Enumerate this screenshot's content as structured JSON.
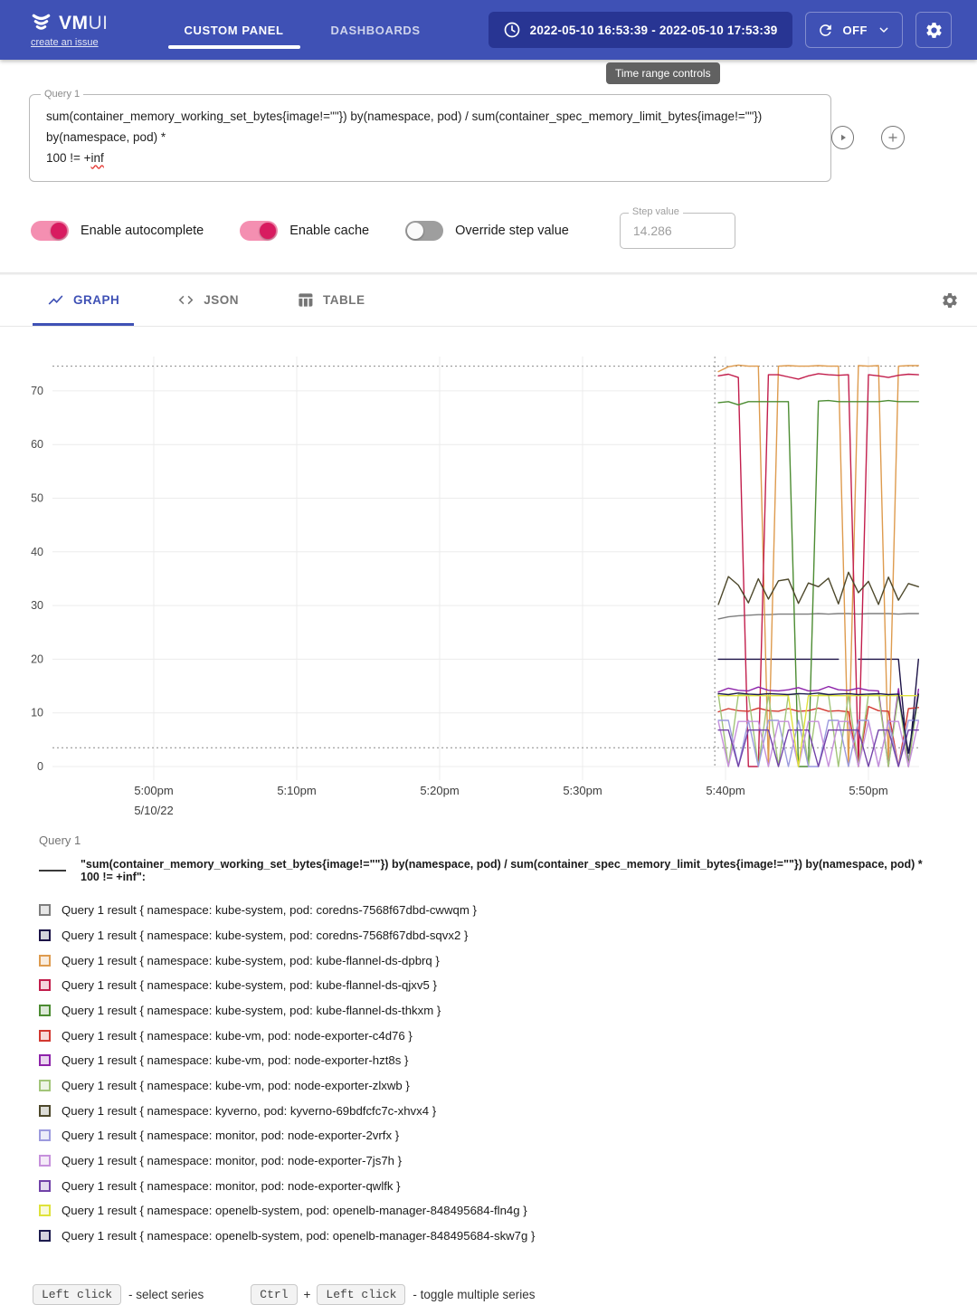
{
  "colors": {
    "header_bg": "#3F51B5",
    "header_btn_bg": "#283593",
    "accent": "#3F51B5",
    "toggle_on_track": "#F48FB1",
    "toggle_on_thumb": "#D81B60",
    "tooltip_bg": "#616161"
  },
  "header": {
    "brand_bold": "VM",
    "brand_light": "UI",
    "issue_link": "create an issue",
    "nav": [
      {
        "label": "CUSTOM PANEL",
        "active": true
      },
      {
        "label": "DASHBOARDS",
        "active": false
      }
    ],
    "time_range": "2022-05-10 16:53:39 - 2022-05-10 17:53:39",
    "autorefresh_label": "OFF",
    "tooltip": "Time range controls"
  },
  "query_panel": {
    "label": "Query 1",
    "query_line1": "sum(container_memory_working_set_bytes{image!=\"\"}) by(namespace, pod) / sum(container_spec_memory_limit_bytes{image!=\"\"}) by(namespace, pod) *",
    "query_line2_prefix": "100 != +",
    "query_line2_word": "inf",
    "toggles": [
      {
        "label": "Enable autocomplete",
        "on": true
      },
      {
        "label": "Enable cache",
        "on": true
      },
      {
        "label": "Override step value",
        "on": false
      }
    ],
    "step": {
      "label": "Step value",
      "value": "14.286"
    }
  },
  "view_tabs": [
    {
      "label": "GRAPH",
      "active": true
    },
    {
      "label": "JSON",
      "active": false
    },
    {
      "label": "TABLE",
      "active": false
    }
  ],
  "chart_data": {
    "type": "line",
    "ylabel": "",
    "xlabel": "",
    "y_ticks": [
      0,
      10,
      20,
      30,
      40,
      50,
      60,
      70
    ],
    "y_range": [
      0,
      76
    ],
    "x_ticks": [
      {
        "min": 1020,
        "label": "5:00pm",
        "sub": "5/10/22"
      },
      {
        "min": 1030,
        "label": "5:10pm"
      },
      {
        "min": 1040,
        "label": "5:20pm"
      },
      {
        "min": 1050,
        "label": "5:30pm"
      },
      {
        "min": 1060,
        "label": "5:40pm"
      },
      {
        "min": 1070,
        "label": "5:50pm"
      }
    ],
    "x_range_min": 1016.5,
    "x_range_max": 1073.5,
    "data_start_min": 1059.5,
    "data_step_min": 0.7,
    "dashed_h_values": [
      74.6,
      3.5
    ],
    "dashed_v_min": 1059.25,
    "series": [
      {
        "name": "coredns-7568f67dbd-cwwqm",
        "namespace": "kube-system",
        "color": "#7E7E7E",
        "values": [
          27.5,
          27.9,
          28.1,
          28.2,
          28.3,
          28.3,
          28.4,
          28.4,
          28.4,
          28.4,
          28.5,
          28.4,
          28.5,
          28.5,
          28.4,
          28.5,
          28.5,
          28.5,
          28.4,
          28.5,
          28.5
        ]
      },
      {
        "name": "coredns-7568f67dbd-sqvx2",
        "namespace": "kube-system",
        "color": "#1C1347",
        "values": [
          20,
          20,
          20,
          20,
          20,
          20,
          20,
          20,
          20,
          20,
          20,
          20,
          20,
          null,
          20,
          20,
          20,
          20,
          20,
          0,
          20
        ]
      },
      {
        "name": "kube-flannel-ds-dpbrq",
        "namespace": "kube-system",
        "color": "#DE9B4E",
        "values": [
          73.6,
          74.5,
          74.8,
          74.6,
          74.6,
          0,
          74.6,
          74.7,
          74.6,
          74.6,
          74.7,
          74.6,
          74.6,
          0,
          74.7,
          74.6,
          74.7,
          0,
          74.6,
          74.7,
          74.7
        ]
      },
      {
        "name": "kube-flannel-ds-qjxv5",
        "namespace": "kube-system",
        "color": "#C21E4C",
        "values": [
          72.8,
          73.1,
          72.5,
          0,
          0,
          73.0,
          73.0,
          72.6,
          72.2,
          72.8,
          73.2,
          73.0,
          72.9,
          73.0,
          0,
          73.0,
          72.8,
          72.5,
          72.9,
          73.1,
          73.0
        ]
      },
      {
        "name": "kube-flannel-ds-thkxm",
        "namespace": "kube-system",
        "color": "#4C8C32",
        "values": [
          67.8,
          68.0,
          67.4,
          68.0,
          68.0,
          68.0,
          68.0,
          68.0,
          0,
          0,
          68.1,
          68.2,
          68.0,
          68.0,
          68.0,
          68.0,
          68.0,
          68.2,
          68.0,
          68.0,
          68.0
        ]
      },
      {
        "name": "node-exporter-c4d76",
        "namespace": "kube-vm",
        "color": "#D23830",
        "values": [
          10.2,
          10.8,
          10.4,
          10.3,
          10.9,
          10.4,
          10.3,
          10.8,
          10.3,
          10.4,
          10.9,
          10.3,
          10.4,
          10.2,
          0,
          11.2,
          10.4,
          10.3,
          0,
          10.8,
          11.0
        ]
      },
      {
        "name": "node-exporter-hzt8s",
        "namespace": "kube-vm",
        "color": "#8E24AA",
        "values": [
          13.9,
          14.6,
          14.2,
          14.1,
          14.8,
          14.2,
          14.1,
          14.3,
          14.7,
          14.1,
          14.2,
          14.9,
          14.3,
          14.2,
          14.6,
          14.2,
          14.1,
          0,
          14.5,
          0,
          14.4
        ]
      },
      {
        "name": "node-exporter-zlxwb",
        "namespace": "kube-vm",
        "color": "#A2C579",
        "values": [
          13.4,
          0,
          13.4,
          13.4,
          0,
          13.4,
          0,
          13.4,
          13.4,
          0,
          13.4,
          13.4,
          0,
          13.4,
          0,
          13.4,
          13.4,
          0,
          13.4,
          0,
          13.4
        ]
      },
      {
        "name": "kyverno-69bdfcfc7c-xhvx4",
        "namespace": "kyverno",
        "color": "#4D482B",
        "values": [
          30.2,
          35.4,
          33.8,
          30.5,
          35.0,
          31.2,
          34.6,
          34.9,
          30.4,
          34.2,
          33.5,
          35.1,
          30.3,
          36.2,
          32.4,
          34.5,
          30.2,
          35.3,
          31.0,
          34.1,
          33.5
        ]
      },
      {
        "name": "node-exporter-2vrfx",
        "namespace": "monitor",
        "color": "#9C9ADE",
        "values": [
          8.6,
          8.6,
          0,
          8.6,
          0,
          8.6,
          8.6,
          0,
          8.6,
          0,
          0,
          8.6,
          8.6,
          0,
          8.6,
          8.6,
          0,
          8.6,
          0,
          8.6,
          8.6
        ]
      },
      {
        "name": "node-exporter-7js7h",
        "namespace": "monitor",
        "color": "#C690DC",
        "values": [
          8.4,
          0,
          8.4,
          8.4,
          8.4,
          0,
          8.4,
          8.4,
          0,
          8.4,
          8.4,
          0,
          8.4,
          8.4,
          0,
          8.4,
          0,
          8.4,
          8.4,
          0,
          8.4
        ]
      },
      {
        "name": "node-exporter-qwlfk",
        "namespace": "monitor",
        "color": "#7142A8",
        "values": [
          6.8,
          6.8,
          0,
          6.8,
          6.8,
          6.8,
          0,
          6.8,
          6.8,
          6.8,
          0,
          6.8,
          6.8,
          6.8,
          6.8,
          0,
          6.8,
          6.8,
          0,
          6.8,
          6.8
        ]
      },
      {
        "name": "openelb-manager-848495684-fln4g",
        "namespace": "openelb-system",
        "color": "#DFE23A",
        "values": [
          13.2,
          13.2,
          13.2,
          13.2,
          13.2,
          13.2,
          13.2,
          13.2,
          0,
          13.2,
          13.2,
          13.2,
          13.2,
          13.2,
          13.2,
          13.2,
          13.2,
          13.2,
          13.2,
          13.2,
          13.2
        ]
      },
      {
        "name": "openelb-manager-848495684-skw7g",
        "namespace": "openelb-system",
        "color": "#1D1C4E",
        "values": [
          13.6,
          13.4,
          13.7,
          13.5,
          13.4,
          13.6,
          13.5,
          13.4,
          13.6,
          13.5,
          13.7,
          13.4,
          13.5,
          13.6,
          13.4,
          13.5,
          13.6,
          13.4,
          13.5,
          2.5,
          13.5
        ]
      }
    ]
  },
  "legend": {
    "group_title": "Query 1",
    "query_label": "\"sum(container_memory_working_set_bytes{image!=\"\"}) by(namespace, pod) / sum(container_spec_memory_limit_bytes{image!=\"\"}) by(namespace, pod) * 100 != +inf\":",
    "items": [
      {
        "color": "#7E7E7E",
        "label": "Query 1 result  { namespace: kube-system,  pod: coredns-7568f67dbd-cwwqm }"
      },
      {
        "color": "#1C1347",
        "label": "Query 1 result  { namespace: kube-system,  pod: coredns-7568f67dbd-sqvx2 }"
      },
      {
        "color": "#DE9B4E",
        "label": "Query 1 result  { namespace: kube-system,  pod: kube-flannel-ds-dpbrq }"
      },
      {
        "color": "#C21E4C",
        "label": "Query 1 result  { namespace: kube-system,  pod: kube-flannel-ds-qjxv5 }"
      },
      {
        "color": "#4C8C32",
        "label": "Query 1 result  { namespace: kube-system,  pod: kube-flannel-ds-thkxm }"
      },
      {
        "color": "#D23830",
        "label": "Query 1 result  { namespace: kube-vm,  pod: node-exporter-c4d76 }"
      },
      {
        "color": "#8E24AA",
        "label": "Query 1 result  { namespace: kube-vm,  pod: node-exporter-hzt8s }"
      },
      {
        "color": "#A2C579",
        "label": "Query 1 result  { namespace: kube-vm,  pod: node-exporter-zlxwb }"
      },
      {
        "color": "#4D482B",
        "label": "Query 1 result  { namespace: kyverno,  pod: kyverno-69bdfcfc7c-xhvx4 }"
      },
      {
        "color": "#9C9ADE",
        "label": "Query 1 result  { namespace: monitor,  pod: node-exporter-2vrfx }"
      },
      {
        "color": "#C690DC",
        "label": "Query 1 result  { namespace: monitor,  pod: node-exporter-7js7h }"
      },
      {
        "color": "#7142A8",
        "label": "Query 1 result  { namespace: monitor,  pod: node-exporter-qwlfk }"
      },
      {
        "color": "#DFE23A",
        "label": "Query 1 result  { namespace: openelb-system,  pod: openelb-manager-848495684-fln4g }"
      },
      {
        "color": "#1D1C4E",
        "label": "Query 1 result  { namespace: openelb-system,  pod: openelb-manager-848495684-skw7g }"
      }
    ]
  },
  "footer": {
    "kbd_left_click_1": "Left click",
    "select_hint": "- select series",
    "kbd_ctrl": "Ctrl",
    "plus": "+",
    "kbd_left_click_2": "Left click",
    "toggle_hint": "- toggle multiple series"
  }
}
